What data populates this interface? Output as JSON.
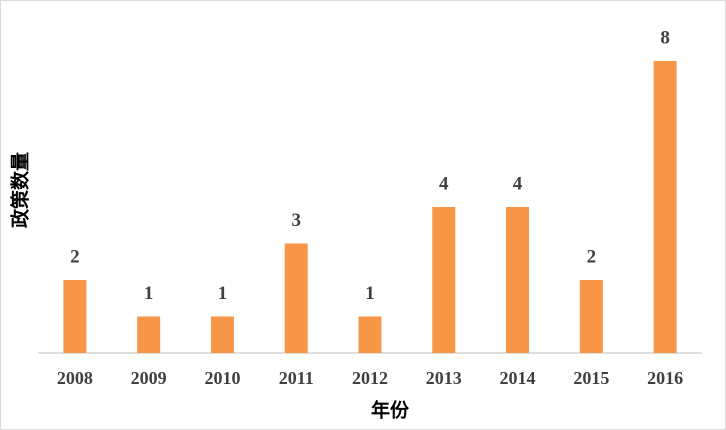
{
  "chart_data": {
    "type": "bar",
    "x_label": "年份",
    "y_label": "政策数量",
    "categories": [
      "2008",
      "2009",
      "2010",
      "2011",
      "2012",
      "2013",
      "2014",
      "2015",
      "2016"
    ],
    "values": [
      2,
      1,
      1,
      3,
      1,
      4,
      4,
      2,
      8
    ],
    "color": "#f79646",
    "ylim": [
      0,
      8
    ],
    "data_labels": true
  }
}
